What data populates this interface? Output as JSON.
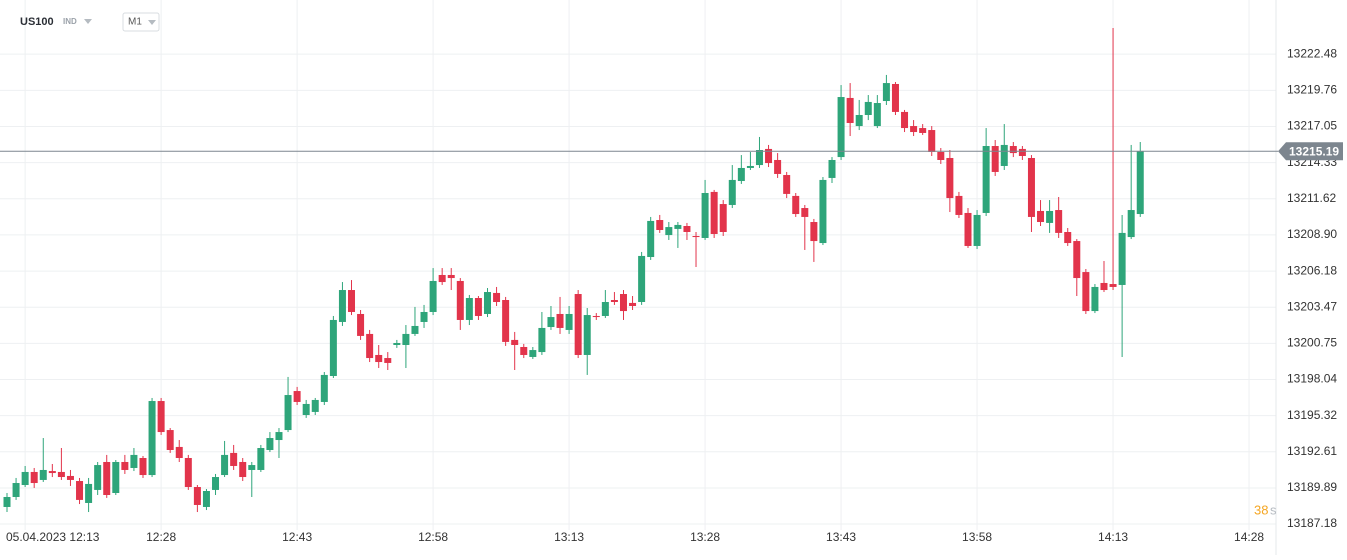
{
  "header": {
    "symbol": "US100",
    "symbol_type": "IND",
    "timeframe": "M1"
  },
  "countdown": {
    "value": "38",
    "unit": "s"
  },
  "chart_data": {
    "type": "candlestick",
    "up_color": "#2ea57a",
    "down_color": "#e2344b",
    "grid": true,
    "current_price": 13215.19,
    "current_price_color": "#7d868f",
    "ylim": [
      13186.73,
      13226.55
    ],
    "yticks": [
      13222.48,
      13219.76,
      13217.05,
      13214.33,
      13211.62,
      {
        "value": 13208.9,
        "label": "13208.90"
      },
      13206.18,
      13203.47,
      13200.75,
      13198.04,
      13195.32,
      13192.61,
      13189.89,
      13187.18
    ],
    "categories": [
      null,
      null,
      "05.04.2023 12:13",
      null,
      null,
      null,
      null,
      null,
      null,
      null,
      null,
      null,
      null,
      null,
      null,
      null,
      null,
      "12:28",
      null,
      null,
      null,
      null,
      null,
      null,
      null,
      null,
      null,
      null,
      null,
      null,
      null,
      null,
      "12:43",
      null,
      null,
      null,
      null,
      null,
      null,
      null,
      null,
      null,
      null,
      null,
      null,
      null,
      null,
      "12:58",
      null,
      null,
      null,
      null,
      null,
      null,
      null,
      null,
      null,
      null,
      null,
      null,
      null,
      null,
      "13:13",
      null,
      null,
      null,
      null,
      null,
      null,
      null,
      null,
      null,
      null,
      null,
      null,
      null,
      null,
      "13:28",
      null,
      null,
      null,
      null,
      null,
      null,
      null,
      null,
      null,
      null,
      null,
      null,
      null,
      null,
      "13:43",
      null,
      null,
      null,
      null,
      null,
      null,
      null,
      null,
      null,
      null,
      null,
      null,
      null,
      null,
      "13:58",
      null,
      null,
      null,
      null,
      null,
      null,
      null,
      null,
      null,
      null,
      null,
      null,
      null,
      null,
      "14:13",
      null,
      null,
      null,
      null,
      null,
      null,
      null,
      null,
      null,
      null,
      null,
      null,
      null,
      null,
      "14:28"
    ],
    "open": [
      13188.46,
      13189.21,
      13190.11,
      13191.09,
      13190.49,
      13191.16,
      13191.09,
      13190.79,
      13190.41,
      13188.76,
      13189.74,
      13191.84,
      13189.51,
      13191.84,
      13191.39,
      13192.14,
      13190.86,
      13196.42,
      13194.24,
      13192.97,
      13192.14,
      13189.96,
      13188.46,
      13189.74,
      13190.86,
      13192.52,
      13191.84,
      13191.24,
      13191.24,
      13192.74,
      13193.49,
      13194.24,
      13197.17,
      13195.37,
      13195.6,
      13196.35,
      13198.3,
      13202.36,
      13204.76,
      13202.96,
      13201.46,
      13199.88,
      13199.65,
      13200.63,
      13200.63,
      13201.46,
      13202.36,
      13203.11,
      13205.89,
      13205.89,
      13205.44,
      13202.51,
      13204.16,
      13202.96,
      13204.54,
      13204.01,
      13201.01,
      13200.48,
      13199.73,
      13200.1,
      13201.98,
      13202.96,
      13201.76,
      13204.46,
      13199.88,
      13202.81,
      13202.81,
      13204.01,
      13204.46,
      13203.79,
      13203.86,
      13207.24,
      13210.02,
      13208.89,
      13209.35,
      13209.57,
      13208.82,
      13208.67,
      13212.13,
      13211.22,
      13211.15,
      13212.95,
      13213.93,
      13214.15,
      13215.36,
      13214.53,
      13213.4,
      13211.83,
      13210.92,
      13209.87,
      13208.29,
      13213.18,
      13214.75,
      13219.19,
      13217.08,
      13217.91,
      13217.08,
      13218.96,
      13220.24,
      13218.14,
      13217.08,
      13216.93,
      13216.78,
      13215.13,
      13214.68,
      13211.83,
      13210.55,
      13208.07,
      13210.55,
      13215.58,
      13214.08,
      13215.58,
      13215.36,
      13214.68,
      13210.7,
      13209.8,
      13210.77,
      13209.12,
      13208.44,
      13206.11,
      13203.18,
      13205.29,
      13205.21,
      13205.14,
      13208.74,
      13210.47,
      null,
      null,
      null,
      null,
      null,
      null,
      null,
      null,
      null,
      null,
      null,
      null
    ],
    "high": [
      13189.51,
      13190.64,
      13191.54,
      13191.39,
      13193.64,
      13191.69,
      13192.89,
      13191.24,
      13190.64,
      13190.64,
      13191.84,
      13192.37,
      13191.99,
      13192.37,
      13192.89,
      13192.29,
      13196.65,
      13196.65,
      13194.39,
      13193.49,
      13192.37,
      13190.11,
      13189.81,
      13190.94,
      13193.42,
      13193.12,
      13192.14,
      13191.84,
      13193.12,
      13194.09,
      13194.39,
      13198.23,
      13197.48,
      13196.5,
      13196.65,
      13198.6,
      13202.81,
      13205.36,
      13205.51,
      13203.26,
      13201.76,
      13200.63,
      13200.1,
      13201.01,
      13202.13,
      13203.49,
      13203.64,
      13206.41,
      13206.41,
      13206.41,
      13205.66,
      13204.39,
      13204.31,
      13204.91,
      13204.99,
      13204.24,
      13201.61,
      13200.71,
      13200.48,
      13203.11,
      13203.56,
      13204.24,
      13203.56,
      13204.76,
      13203.41,
      13203.03,
      13204.76,
      13204.61,
      13204.76,
      13204.31,
      13207.62,
      13210.25,
      13210.4,
      13209.87,
      13209.87,
      13209.8,
      13209.12,
      13213.03,
      13212.28,
      13211.52,
      13214.15,
      13214.9,
      13215.13,
      13216.26,
      13215.66,
      13215.05,
      13213.63,
      13212.05,
      13211.15,
      13210.1,
      13213.25,
      13214.75,
      13220.16,
      13220.31,
      13219.04,
      13219.41,
      13219.41,
      13220.92,
      13220.39,
      13218.29,
      13217.53,
      13217.23,
      13217.08,
      13215.43,
      13215.28,
      13212.13,
      13210.92,
      13210.77,
      13216.93,
      13216.03,
      13217.23,
      13215.88,
      13215.58,
      13214.9,
      13211.52,
      13211.52,
      13211.75,
      13209.42,
      13208.59,
      13206.34,
      13205.21,
      13206.94,
      13224.45,
      13210.4,
      13215.66,
      13215.88,
      null,
      null,
      null,
      null,
      null,
      null,
      null,
      null,
      null,
      null,
      null,
      null
    ],
    "low": [
      13188.08,
      13188.99,
      13189.96,
      13189.89,
      13190.34,
      13190.71,
      13190.49,
      13190.04,
      13188.68,
      13188.08,
      13189.36,
      13189.14,
      13189.36,
      13190.94,
      13191.16,
      13190.64,
      13190.71,
      13193.87,
      13192.52,
      13191.84,
      13189.74,
      13188.08,
      13188.23,
      13189.36,
      13190.71,
      13191.24,
      13190.41,
      13189.21,
      13191.09,
      13192.59,
      13192.14,
      13194.09,
      13196.12,
      13195.15,
      13195.37,
      13196.12,
      13198.15,
      13202.06,
      13202.88,
      13201.01,
      13199.35,
      13198.9,
      13198.75,
      13200.41,
      13198.9,
      13201.31,
      13201.91,
      13202.88,
      13205.14,
      13204.76,
      13201.76,
      13202.13,
      13202.51,
      13202.73,
      13203.56,
      13200.56,
      13198.75,
      13199.65,
      13199.58,
      13199.88,
      13201.76,
      13201.46,
      13201.46,
      13199.65,
      13198.38,
      13202.51,
      13202.66,
      13203.64,
      13202.51,
      13203.26,
      13203.64,
      13207.02,
      13209.05,
      13208.52,
      13207.92,
      13208.52,
      13206.49,
      13208.52,
      13208.67,
      13208.82,
      13210.92,
      13212.73,
      13213.78,
      13213.93,
      13214.0,
      13213.18,
      13211.67,
      13210.25,
      13207.77,
      13206.87,
      13208.14,
      13212.8,
      13214.53,
      13216.33,
      13216.78,
      13217.53,
      13216.93,
      13218.66,
      13217.91,
      13216.63,
      13216.33,
      13216.41,
      13214.83,
      13214.23,
      13210.62,
      13210.17,
      13207.92,
      13207.84,
      13210.32,
      13213.33,
      13213.78,
      13214.75,
      13214.53,
      13209.12,
      13209.57,
      13209.05,
      13208.67,
      13208.07,
      13204.31,
      13202.96,
      13203.03,
      13204.61,
      13204.76,
      13199.73,
      13208.59,
      13210.25,
      null,
      null,
      null,
      null,
      null,
      null,
      null,
      null,
      null,
      null,
      null,
      null
    ],
    "close": [
      13189.21,
      13190.26,
      13191.09,
      13190.26,
      13191.24,
      13191.01,
      13190.71,
      13190.49,
      13188.99,
      13190.19,
      13191.61,
      13189.36,
      13191.84,
      13191.24,
      13192.37,
      13190.86,
      13196.42,
      13194.09,
      13192.74,
      13192.14,
      13189.96,
      13188.61,
      13189.66,
      13190.71,
      13192.37,
      13191.54,
      13190.71,
      13191.61,
      13192.89,
      13193.64,
      13194.09,
      13196.87,
      13196.35,
      13196.2,
      13196.5,
      13198.38,
      13202.51,
      13204.76,
      13203.11,
      13201.31,
      13199.65,
      13199.35,
      13199.28,
      13200.78,
      13201.46,
      13202.06,
      13203.11,
      13205.44,
      13205.36,
      13205.66,
      13202.51,
      13204.16,
      13202.81,
      13204.61,
      13203.86,
      13200.86,
      13200.63,
      13199.88,
      13200.25,
      13201.91,
      13202.73,
      13201.91,
      13202.96,
      13199.88,
      13202.88,
      13202.73,
      13203.86,
      13203.86,
      13203.18,
      13203.56,
      13207.32,
      13209.95,
      13209.27,
      13209.49,
      13209.65,
      13209.12,
      13208.74,
      13212.05,
      13208.97,
      13209.12,
      13213.03,
      13213.93,
      13214.08,
      13215.28,
      13214.3,
      13213.48,
      13211.98,
      13210.47,
      13210.25,
      13208.44,
      13213.03,
      13214.53,
      13219.26,
      13217.31,
      13217.91,
      13218.89,
      13218.81,
      13220.31,
      13218.14,
      13216.93,
      13216.63,
      13216.56,
      13215.13,
      13214.53,
      13211.67,
      13210.4,
      13208.07,
      13210.4,
      13215.58,
      13213.63,
      13215.66,
      13215.05,
      13214.83,
      13210.25,
      13209.87,
      13210.7,
      13209.05,
      13208.29,
      13205.66,
      13203.18,
      13204.99,
      13204.76,
      13204.99,
      13209.05,
      13210.77,
      13215.19,
      null,
      null,
      null,
      null,
      null,
      null,
      null,
      null,
      null,
      null,
      null,
      null
    ]
  }
}
